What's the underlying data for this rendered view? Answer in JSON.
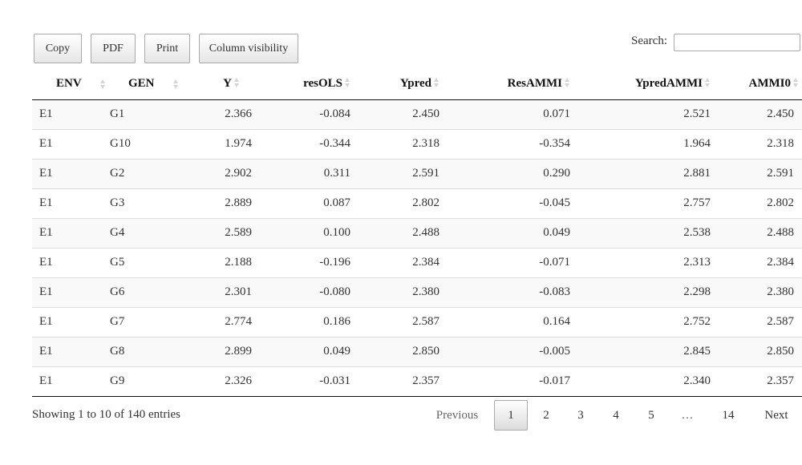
{
  "toolbar": {
    "buttons": [
      "Copy",
      "PDF",
      "Print",
      "Column visibility"
    ],
    "search_label": "Search:",
    "search_value": ""
  },
  "table": {
    "columns": [
      "ENV",
      "GEN",
      "Y",
      "resOLS",
      "Ypred",
      "ResAMMI",
      "YpredAMMI",
      "AMMI0"
    ],
    "rows": [
      [
        "E1",
        "G1",
        "2.366",
        "-0.084",
        "2.450",
        "0.071",
        "2.521",
        "2.450"
      ],
      [
        "E1",
        "G10",
        "1.974",
        "-0.344",
        "2.318",
        "-0.354",
        "1.964",
        "2.318"
      ],
      [
        "E1",
        "G2",
        "2.902",
        "0.311",
        "2.591",
        "0.290",
        "2.881",
        "2.591"
      ],
      [
        "E1",
        "G3",
        "2.889",
        "0.087",
        "2.802",
        "-0.045",
        "2.757",
        "2.802"
      ],
      [
        "E1",
        "G4",
        "2.589",
        "0.100",
        "2.488",
        "0.049",
        "2.538",
        "2.488"
      ],
      [
        "E1",
        "G5",
        "2.188",
        "-0.196",
        "2.384",
        "-0.071",
        "2.313",
        "2.384"
      ],
      [
        "E1",
        "G6",
        "2.301",
        "-0.080",
        "2.380",
        "-0.083",
        "2.298",
        "2.380"
      ],
      [
        "E1",
        "G7",
        "2.774",
        "0.186",
        "2.587",
        "0.164",
        "2.752",
        "2.587"
      ],
      [
        "E1",
        "G8",
        "2.899",
        "0.049",
        "2.850",
        "-0.005",
        "2.845",
        "2.850"
      ],
      [
        "E1",
        "G9",
        "2.326",
        "-0.031",
        "2.357",
        "-0.017",
        "2.340",
        "2.357"
      ]
    ]
  },
  "footer": {
    "info": "Showing 1 to 10 of 140 entries",
    "previous": "Previous",
    "pages": [
      "1",
      "2",
      "3",
      "4",
      "5",
      "…",
      "14"
    ],
    "next": "Next",
    "current_page": "1"
  }
}
